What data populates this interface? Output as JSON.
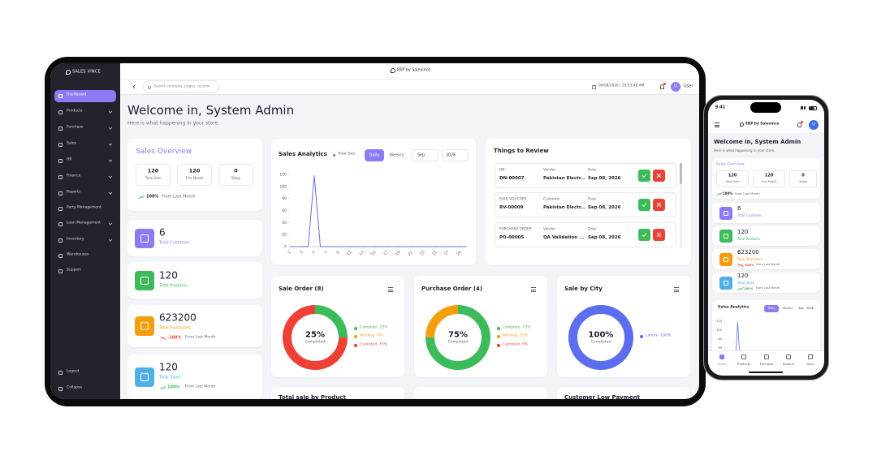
{
  "brand": "SALES VINCE",
  "app_title": "ERP by Salevince",
  "sidebar": {
    "items": [
      "Dashboard",
      "Products",
      "Purchase",
      "Sales",
      "HR",
      "Finance",
      "Reports",
      "Party Management",
      "Loan Management",
      "Inventory",
      "Warehouses",
      "Support"
    ],
    "footer": [
      "Logout",
      "Collapse"
    ]
  },
  "topbar": {
    "search_placeholder": "Search modules, pages, records",
    "datetime": "09/08/2026 | 10:53:48 AM",
    "avatar": "U",
    "user": "User"
  },
  "welcome": {
    "title": "Welcome in, System Admin",
    "subtitle": "Here is what happening in your store."
  },
  "sales_overview": {
    "title": "Sales Overview",
    "stats": [
      {
        "value": 120,
        "label": "Total Sale"
      },
      {
        "value": 120,
        "label": "This Month"
      },
      {
        "value": 0,
        "label": "Today"
      }
    ],
    "change": "100%",
    "change_note": "From Last Month"
  },
  "stat_cards": [
    {
      "value": 6,
      "label": "Total Customer"
    },
    {
      "value": 120,
      "label": "Total Products"
    },
    {
      "value": 623200,
      "label": "Total Purchases",
      "change": "-100%",
      "change_note": "From Last Month"
    },
    {
      "value": 120,
      "label": "Total Sales",
      "change": "100%",
      "change_note": "From Last Month"
    }
  ],
  "sales_analytics": {
    "tabs": [
      "Daily",
      "Weekly"
    ],
    "month": "Sep",
    "year": "2026"
  },
  "things_to_review": {
    "title": "Things to Review",
    "rows": [
      {
        "type": "DN",
        "number": "DN-00007",
        "party_label": "Vendor",
        "party": "Pakistan Electr...",
        "date_label": "Date",
        "date": "Sep 08, 2026"
      },
      {
        "type": "SALE VOUCHER",
        "number": "RV-00009",
        "party_label": "Customer",
        "party": "Pakistan Electr...",
        "date_label": "Date",
        "date": "Sep 08, 2026"
      },
      {
        "type": "PURCHASE ORDER",
        "number": "PO-00005",
        "party_label": "Vendor",
        "party": "QA Validation ...",
        "date_label": "Date",
        "date": "Sep 08, 2026"
      }
    ]
  },
  "bottom_cards": [
    "Total sale by Product",
    "Customer Low Payment"
  ],
  "phone": {
    "time": "9:41",
    "nav": [
      "Home",
      "Products",
      "Purchase",
      "Reports",
      "More"
    ]
  },
  "chart_data": [
    {
      "type": "line",
      "title": "Sales Analytics",
      "x": [
        1,
        2,
        3,
        4,
        5,
        6,
        7,
        8,
        9,
        10,
        11,
        12,
        13,
        14,
        15,
        16,
        17,
        18,
        19,
        20,
        21,
        22,
        23,
        24,
        25,
        26,
        27,
        28,
        29,
        30
      ],
      "series": [
        {
          "name": "Total Sale",
          "color": "#6272e0",
          "values": [
            0,
            0,
            0,
            0,
            118,
            0,
            0,
            0,
            0,
            0,
            0,
            0,
            0,
            0,
            0,
            0,
            0,
            0,
            0,
            0,
            0,
            0,
            0,
            0,
            0,
            0,
            0,
            0,
            0,
            0
          ]
        }
      ],
      "xlim": [
        1,
        30
      ],
      "xticks": [
        1,
        3,
        5,
        7,
        9,
        11,
        13,
        15,
        17,
        19,
        21,
        23,
        25,
        27,
        29
      ],
      "ylim": [
        0,
        120
      ],
      "yticks": [
        0,
        20,
        40,
        60,
        80,
        100,
        120
      ],
      "grid": false
    },
    {
      "type": "pie",
      "title": "Sale Order (8)",
      "donut": true,
      "center_label": "Completed",
      "categories": [
        "Complete",
        "Pending",
        "Canceled"
      ],
      "values": [
        25,
        0,
        75
      ],
      "value_labels": [
        "25%",
        "0%",
        "75%"
      ],
      "colors": [
        "#3dba5a",
        "#f59e0b",
        "#ef4035"
      ]
    },
    {
      "type": "pie",
      "title": "Purchase Order (4)",
      "donut": true,
      "center_label": "Completed",
      "categories": [
        "Complete",
        "Pending",
        "Canceled"
      ],
      "values": [
        75,
        25,
        0
      ],
      "value_labels": [
        "75%",
        "25%",
        "0%"
      ],
      "colors": [
        "#3dba5a",
        "#f59e0b",
        "#ef4035"
      ]
    },
    {
      "type": "pie",
      "title": "Sale by City",
      "donut": true,
      "center_label": "Completed",
      "categories": [
        "Lahore"
      ],
      "values": [
        100
      ],
      "value_labels": [
        "100%"
      ],
      "colors": [
        "#5b6ef0"
      ]
    }
  ]
}
